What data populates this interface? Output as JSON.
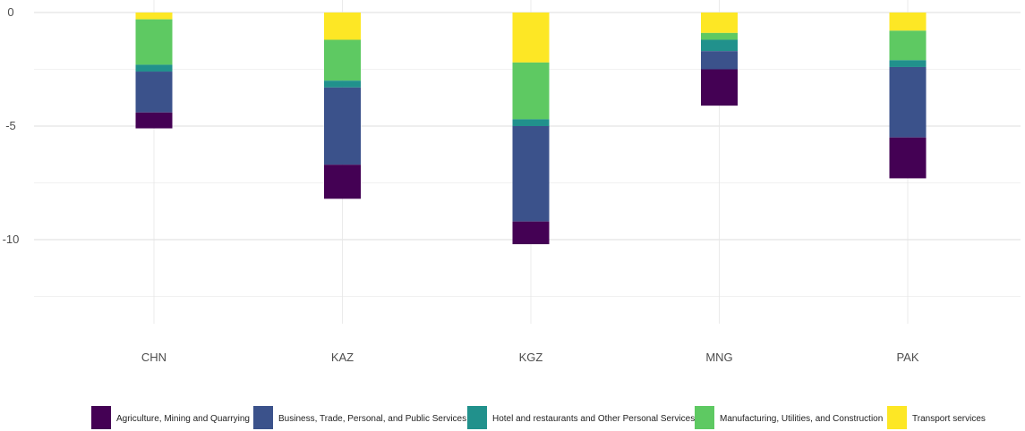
{
  "chart_data": {
    "type": "bar",
    "stacked": true,
    "categories": [
      "CHN",
      "KAZ",
      "KGZ",
      "MNG",
      "PAK"
    ],
    "ylim": [
      -13,
      0.5
    ],
    "yticks": [
      0,
      -5,
      -10
    ],
    "grid": true,
    "legend_position": "bottom",
    "series": [
      {
        "name": "Transport services",
        "color": "#fde725",
        "values": [
          -0.3,
          -1.2,
          -2.2,
          -0.9,
          -0.8
        ]
      },
      {
        "name": "Manufacturing, Utilities, and Construction",
        "color": "#5ec962",
        "values": [
          -2.0,
          -1.8,
          -2.5,
          -0.3,
          -1.3
        ]
      },
      {
        "name": "Hotel and restaurants and Other Personal Services",
        "color": "#21918c",
        "values": [
          -0.3,
          -0.3,
          -0.3,
          -0.5,
          -0.3
        ]
      },
      {
        "name": "Business, Trade, Personal, and Public Services",
        "color": "#3b528b",
        "values": [
          -1.8,
          -3.4,
          -4.2,
          -0.8,
          -3.1
        ]
      },
      {
        "name": "Agriculture, Mining and Quarrying",
        "color": "#440154",
        "values": [
          -0.7,
          -1.5,
          -1.0,
          -1.6,
          -1.8
        ]
      }
    ],
    "legend_order": [
      "Agriculture, Mining and Quarrying",
      "Business, Trade, Personal, and Public Services",
      "Hotel and restaurants and Other Personal Services",
      "Manufacturing, Utilities, and Construction",
      "Transport services"
    ]
  }
}
